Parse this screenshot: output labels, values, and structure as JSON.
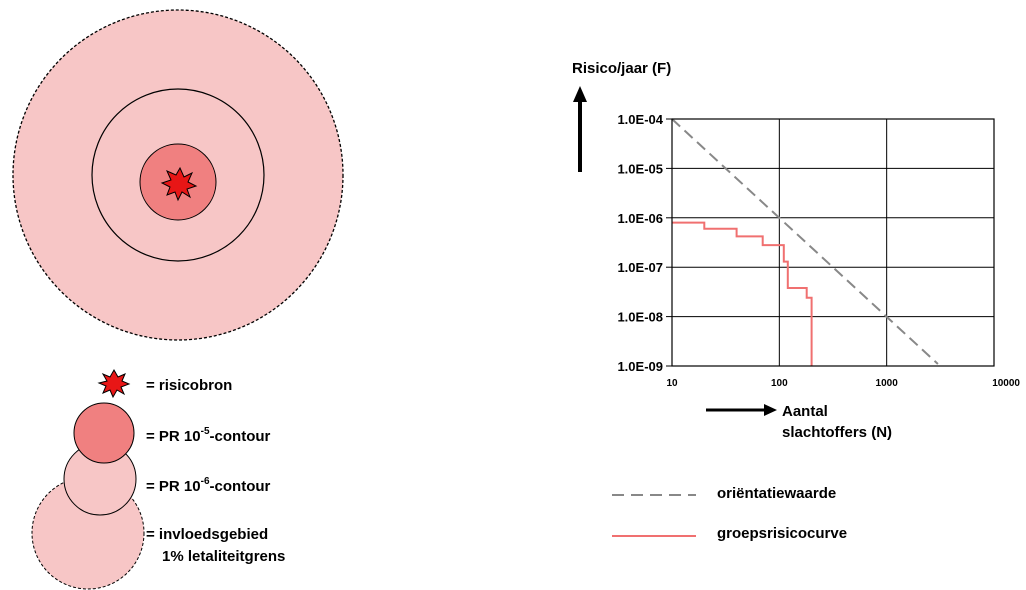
{
  "colors": {
    "influence_fill": "#f7c6c6",
    "pr5_fill": "#f08080",
    "source_fill": "#e81616",
    "guide_line": "#888888",
    "fn_curve": "#f07070"
  },
  "legend_left": {
    "source_label": "= risicobron",
    "pr5_prefix": "= PR 10",
    "pr5_exp": "-5",
    "pr5_suffix": "-contour",
    "pr6_prefix": "= PR 10",
    "pr6_exp": "-6",
    "pr6_suffix": "-contour",
    "influence_line1": "= invloedsgebied",
    "influence_line2": "1% letaliteitgrens"
  },
  "legend_right": {
    "guide_label": "oriëntatiewaarde",
    "curve_label": "groepsrisicocurve"
  },
  "chart_data": {
    "type": "line",
    "ylabel": "Risico/jaar (F)",
    "xlabel_line1": "Aantal",
    "xlabel_line2": "slachtoffers (N)",
    "x_scale": "log",
    "y_scale": "log",
    "xlim": [
      10,
      10000
    ],
    "ylim": [
      1e-09,
      0.0001
    ],
    "grid": true,
    "x_ticks": [
      {
        "value": 10,
        "label": "10"
      },
      {
        "value": 100,
        "label": "100"
      },
      {
        "value": 1000,
        "label": "1000"
      },
      {
        "value": 10000,
        "label": "10000"
      }
    ],
    "y_ticks": [
      {
        "value": 0.0001,
        "label": "1.0E-04"
      },
      {
        "value": 1e-05,
        "label": "1.0E-05"
      },
      {
        "value": 1e-06,
        "label": "1.0E-06"
      },
      {
        "value": 1e-07,
        "label": "1.0E-07"
      },
      {
        "value": 1e-08,
        "label": "1.0E-08"
      },
      {
        "value": 1e-09,
        "label": "1.0E-09"
      }
    ],
    "series": [
      {
        "name": "oriëntatiewaarde",
        "style": "dashed",
        "x": [
          10,
          3000
        ],
        "y": [
          0.0001,
          1.1e-09
        ]
      },
      {
        "name": "groepsrisicocurve",
        "style": "step",
        "x": [
          10,
          20,
          20,
          40,
          40,
          70,
          70,
          110,
          110,
          120,
          120,
          180,
          180,
          200,
          200
        ],
        "y": [
          8e-07,
          8e-07,
          6e-07,
          6e-07,
          4.2e-07,
          4.2e-07,
          2.8e-07,
          2.8e-07,
          1.3e-07,
          1.3e-07,
          3.8e-08,
          3.8e-08,
          2.4e-08,
          2.4e-08,
          1e-09
        ]
      }
    ]
  }
}
